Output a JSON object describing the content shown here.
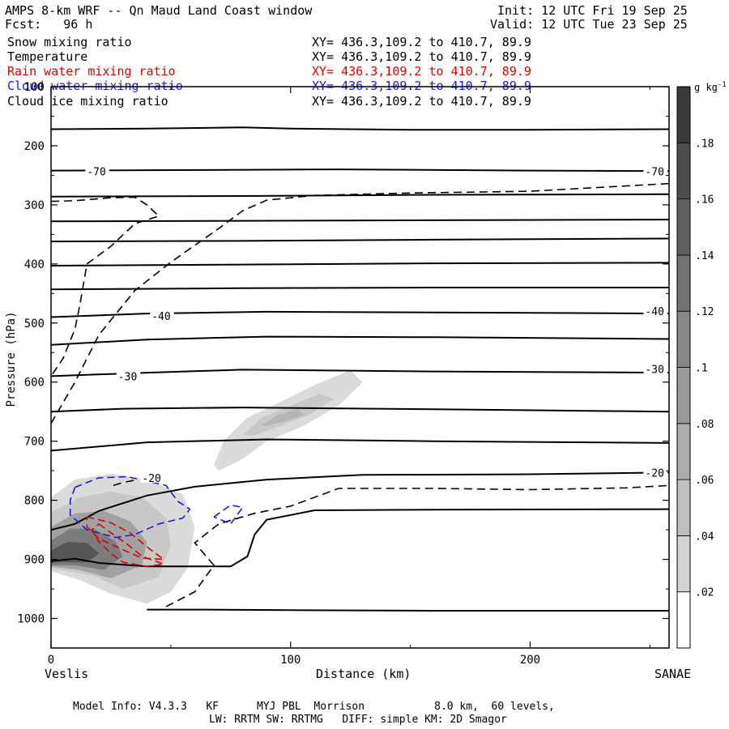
{
  "header": {
    "title": "AMPS 8-km WRF -- Qn Maud Land Coast window",
    "init": "Init: 12 UTC Fri 19 Sep 25",
    "fcst": "Fcst:   96 h",
    "valid": "Valid: 12 UTC Tue 23 Sep 25"
  },
  "fields": [
    {
      "name": "Snow mixing ratio",
      "xy": "XY= 436.3,109.2 to 410.7, 89.9",
      "color": "#000000"
    },
    {
      "name": "Temperature",
      "xy": "XY= 436.3,109.2 to 410.7, 89.9",
      "color": "#000000"
    },
    {
      "name": "Rain water mixing ratio",
      "xy": "XY= 436.3,109.2 to 410.7, 89.9",
      "color": "#e00000"
    },
    {
      "name": "Cloud water mixing ratio",
      "xy": "XY= 436.3,109.2 to 410.7, 89.9",
      "color": "#1a1ae0"
    },
    {
      "name": "Cloud ice mixing ratio",
      "xy": "XY= 436.3,109.2 to 410.7, 89.9",
      "color": "#000000"
    }
  ],
  "footer": {
    "line1": "Model Info: V4.3.3   KF      MYJ PBL  Morrison           8.0 km,  60 levels,",
    "line2": "LW: RRTM SW: RRTMG   DIFF: simple KM: 2D Smagor"
  },
  "chart_data": {
    "type": "cross-section",
    "xlabel": "Distance (km)",
    "ylabel": "Pressure (hPa)",
    "xlim": [
      0,
      258
    ],
    "ylim": [
      1050,
      100
    ],
    "xticks": [
      {
        "v": 0,
        "label": "0"
      },
      {
        "v": 100,
        "label": "100"
      },
      {
        "v": 200,
        "label": "200"
      }
    ],
    "yticks": [
      {
        "v": 100,
        "label": "100"
      },
      {
        "v": 200,
        "label": "200"
      },
      {
        "v": 300,
        "label": "300"
      },
      {
        "v": 400,
        "label": "400"
      },
      {
        "v": 500,
        "label": "500"
      },
      {
        "v": 600,
        "label": "600"
      },
      {
        "v": 700,
        "label": "700"
      },
      {
        "v": 800,
        "label": "800"
      },
      {
        "v": 900,
        "label": "900"
      },
      {
        "v": 1000,
        "label": "1000"
      }
    ],
    "endpoints": {
      "left": "Veslis",
      "right": "SANAE"
    },
    "colorbar": {
      "unit": "g kg-1",
      "ticks": [
        {
          "v": 0.02,
          "label": ".02"
        },
        {
          "v": 0.04,
          "label": ".04"
        },
        {
          "v": 0.06,
          "label": ".06"
        },
        {
          "v": 0.08,
          "label": ".08"
        },
        {
          "v": 0.1,
          "label": ".1"
        },
        {
          "v": 0.12,
          "label": ".12"
        },
        {
          "v": 0.14,
          "label": ".14"
        },
        {
          "v": 0.16,
          "label": ".16"
        },
        {
          "v": 0.18,
          "label": ".18"
        }
      ],
      "min": 0,
      "max": 0.2
    },
    "temperature_isotherms": [
      [
        [
          0,
          172
        ],
        [
          40,
          171
        ],
        [
          80,
          169
        ],
        [
          100,
          171
        ],
        [
          150,
          173
        ],
        [
          200,
          173
        ],
        [
          258,
          172
        ]
      ],
      [
        [
          0,
          242
        ],
        [
          60,
          241
        ],
        [
          120,
          240
        ],
        [
          200,
          242
        ],
        [
          258,
          243
        ]
      ],
      [
        [
          0,
          286
        ],
        [
          80,
          285
        ],
        [
          160,
          283
        ],
        [
          258,
          282
        ]
      ],
      [
        [
          0,
          328
        ],
        [
          80,
          327
        ],
        [
          160,
          326
        ],
        [
          258,
          325
        ]
      ],
      [
        [
          0,
          362
        ],
        [
          80,
          361
        ],
        [
          160,
          359
        ],
        [
          258,
          357
        ]
      ],
      [
        [
          0,
          403
        ],
        [
          80,
          401
        ],
        [
          160,
          399
        ],
        [
          258,
          398
        ]
      ],
      [
        [
          0,
          443
        ],
        [
          80,
          441
        ],
        [
          160,
          440
        ],
        [
          258,
          440
        ]
      ],
      [
        [
          0,
          490
        ],
        [
          40,
          484
        ],
        [
          90,
          481
        ],
        [
          160,
          482
        ],
        [
          258,
          484
        ]
      ],
      [
        [
          0,
          537
        ],
        [
          40,
          528
        ],
        [
          90,
          523
        ],
        [
          160,
          524
        ],
        [
          258,
          527
        ]
      ],
      [
        [
          0,
          590
        ],
        [
          40,
          584
        ],
        [
          80,
          579
        ],
        [
          160,
          582
        ],
        [
          258,
          584
        ]
      ],
      [
        [
          0,
          650
        ],
        [
          30,
          645
        ],
        [
          80,
          643
        ],
        [
          160,
          646
        ],
        [
          258,
          650
        ]
      ],
      [
        [
          0,
          716
        ],
        [
          40,
          702
        ],
        [
          90,
          697
        ],
        [
          160,
          700
        ],
        [
          258,
          703
        ]
      ],
      [
        [
          0,
          850
        ],
        [
          10,
          840
        ],
        [
          20,
          818
        ],
        [
          40,
          792
        ],
        [
          60,
          777
        ],
        [
          90,
          765
        ],
        [
          130,
          757
        ],
        [
          200,
          756
        ],
        [
          258,
          753
        ]
      ],
      [
        [
          0,
          903
        ],
        [
          10,
          899
        ],
        [
          20,
          906
        ],
        [
          40,
          912
        ],
        [
          60,
          912
        ],
        [
          75,
          912
        ],
        [
          82,
          895
        ],
        [
          85,
          858
        ],
        [
          90,
          833
        ],
        [
          110,
          817
        ],
        [
          160,
          816
        ],
        [
          258,
          815
        ]
      ],
      [
        [
          40,
          985
        ],
        [
          60,
          985
        ],
        [
          100,
          986
        ],
        [
          160,
          987
        ],
        [
          258,
          987
        ]
      ]
    ],
    "temperature_dashed": [
      [
        [
          0,
          294
        ],
        [
          10,
          293
        ],
        [
          25,
          288
        ],
        [
          35,
          287
        ],
        [
          40,
          300
        ],
        [
          45,
          319
        ],
        [
          35,
          332
        ],
        [
          25,
          370
        ],
        [
          15,
          400
        ],
        [
          12,
          470
        ],
        [
          10,
          510
        ],
        [
          5,
          560
        ],
        [
          0,
          590
        ]
      ],
      [
        [
          0,
          670
        ],
        [
          10,
          600
        ],
        [
          20,
          520
        ],
        [
          35,
          445
        ],
        [
          50,
          397
        ],
        [
          70,
          340
        ],
        [
          80,
          310
        ],
        [
          90,
          292
        ],
        [
          110,
          284
        ],
        [
          150,
          280
        ],
        [
          200,
          277
        ],
        [
          258,
          264
        ]
      ],
      [
        [
          48,
          980
        ],
        [
          60,
          955
        ],
        [
          68,
          910
        ],
        [
          60,
          872
        ],
        [
          70,
          840
        ],
        [
          85,
          822
        ],
        [
          100,
          810
        ],
        [
          110,
          795
        ],
        [
          120,
          780
        ],
        [
          160,
          780
        ],
        [
          200,
          782
        ],
        [
          240,
          779
        ],
        [
          258,
          775
        ]
      ],
      [
        [
          26,
          775
        ],
        [
          30,
          770
        ],
        [
          35,
          766
        ]
      ]
    ],
    "temperature_labels": [
      {
        "x": 15,
        "p": 243,
        "label": "-70"
      },
      {
        "x": 248,
        "p": 243,
        "label": "-70"
      },
      {
        "x": 42,
        "p": 488,
        "label": "-40"
      },
      {
        "x": 248,
        "p": 480,
        "label": "-40"
      },
      {
        "x": 28,
        "p": 590,
        "label": "-30"
      },
      {
        "x": 248,
        "p": 578,
        "label": "-30"
      },
      {
        "x": 38,
        "p": 762,
        "label": "-20"
      },
      {
        "x": 248,
        "p": 753,
        "label": "-20"
      }
    ],
    "rain_water_contours": [
      [
        [
          20,
          840
        ],
        [
          25,
          855
        ],
        [
          32,
          875
        ],
        [
          38,
          895
        ],
        [
          47,
          908
        ],
        [
          40,
          912
        ],
        [
          30,
          905
        ],
        [
          25,
          890
        ],
        [
          20,
          870
        ],
        [
          17,
          850
        ],
        [
          20,
          840
        ]
      ],
      [
        [
          15,
          828
        ],
        [
          25,
          838
        ],
        [
          33,
          855
        ],
        [
          41,
          882
        ],
        [
          47,
          900
        ],
        [
          38,
          898
        ],
        [
          28,
          880
        ],
        [
          20,
          865
        ],
        [
          15,
          845
        ],
        [
          15,
          828
        ]
      ]
    ],
    "cloud_water_contours": [
      [
        [
          10,
          778
        ],
        [
          20,
          762
        ],
        [
          32,
          760
        ],
        [
          48,
          775
        ],
        [
          53,
          802
        ],
        [
          58,
          815
        ],
        [
          55,
          830
        ],
        [
          45,
          840
        ],
        [
          35,
          858
        ],
        [
          27,
          863
        ],
        [
          15,
          850
        ],
        [
          8,
          825
        ],
        [
          8,
          800
        ],
        [
          10,
          778
        ]
      ],
      [
        [
          68,
          828
        ],
        [
          75,
          808
        ],
        [
          80,
          812
        ],
        [
          75,
          840
        ],
        [
          68,
          828
        ]
      ]
    ],
    "snow_shading": [
      {
        "level": 0.02,
        "poly": [
          [
            0,
            795
          ],
          [
            10,
            765
          ],
          [
            25,
            755
          ],
          [
            40,
            765
          ],
          [
            55,
            790
          ],
          [
            60,
            845
          ],
          [
            57,
            915
          ],
          [
            50,
            955
          ],
          [
            40,
            975
          ],
          [
            25,
            958
          ],
          [
            12,
            935
          ],
          [
            0,
            920
          ]
        ]
      },
      {
        "level": 0.04,
        "poly": [
          [
            0,
            820
          ],
          [
            12,
            795
          ],
          [
            25,
            785
          ],
          [
            38,
            795
          ],
          [
            48,
            830
          ],
          [
            50,
            875
          ],
          [
            45,
            930
          ],
          [
            30,
            950
          ],
          [
            18,
            928
          ],
          [
            0,
            915
          ]
        ]
      },
      {
        "level": 0.08,
        "poly": [
          [
            0,
            845
          ],
          [
            10,
            822
          ],
          [
            22,
            818
          ],
          [
            33,
            835
          ],
          [
            40,
            870
          ],
          [
            38,
            910
          ],
          [
            25,
            932
          ],
          [
            12,
            918
          ],
          [
            0,
            912
          ]
        ]
      },
      {
        "level": 0.12,
        "poly": [
          [
            0,
            868
          ],
          [
            8,
            848
          ],
          [
            18,
            848
          ],
          [
            27,
            870
          ],
          [
            30,
            895
          ],
          [
            22,
            918
          ],
          [
            10,
            910
          ],
          [
            0,
            910
          ]
        ]
      },
      {
        "level": 0.16,
        "poly": [
          [
            0,
            885
          ],
          [
            7,
            870
          ],
          [
            15,
            872
          ],
          [
            20,
            890
          ],
          [
            15,
            905
          ],
          [
            5,
            905
          ],
          [
            0,
            905
          ]
        ]
      },
      {
        "level": 0.02,
        "poly": [
          [
            68,
            740
          ],
          [
            72,
            700
          ],
          [
            82,
            660
          ],
          [
            95,
            635
          ],
          [
            110,
            605
          ],
          [
            125,
            580
          ],
          [
            130,
            600
          ],
          [
            120,
            640
          ],
          [
            105,
            675
          ],
          [
            90,
            700
          ],
          [
            80,
            730
          ],
          [
            70,
            750
          ]
        ]
      },
      {
        "level": 0.04,
        "poly": [
          [
            80,
            690
          ],
          [
            88,
            660
          ],
          [
            100,
            640
          ],
          [
            112,
            620
          ],
          [
            118,
            628
          ],
          [
            108,
            655
          ],
          [
            95,
            675
          ],
          [
            85,
            690
          ]
        ]
      },
      {
        "level": 0.06,
        "poly": [
          [
            88,
            672
          ],
          [
            95,
            655
          ],
          [
            103,
            646
          ],
          [
            106,
            655
          ],
          [
            98,
            666
          ],
          [
            90,
            674
          ]
        ]
      }
    ]
  }
}
